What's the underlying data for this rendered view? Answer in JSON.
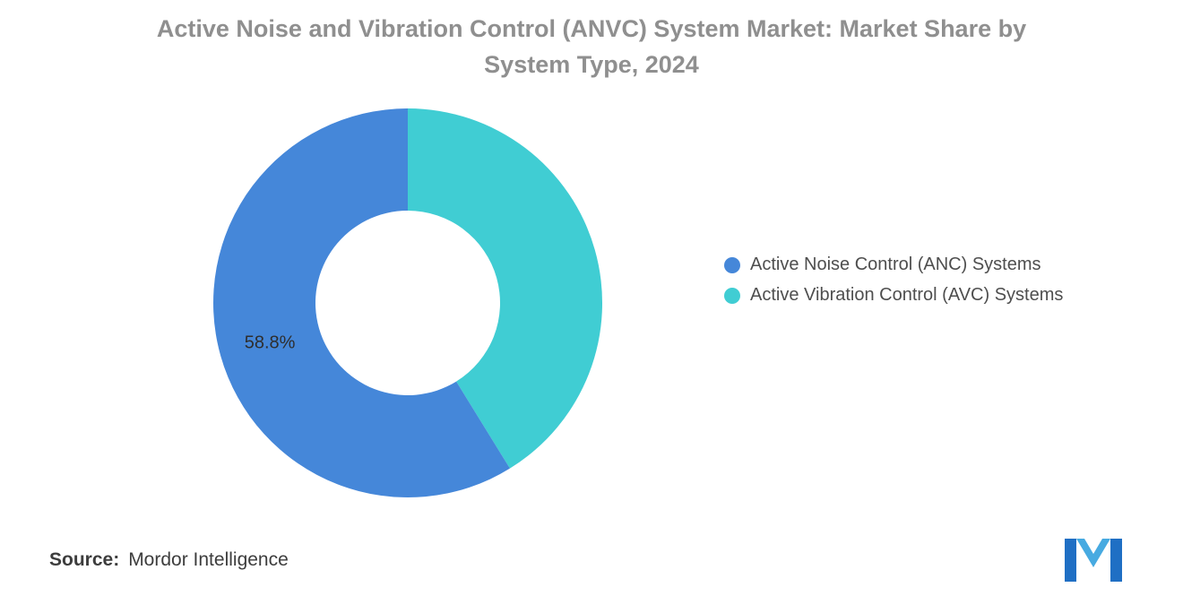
{
  "title": "Active Noise and Vibration Control (ANVC) System Market: Market Share by\nSystem Type, 2024",
  "chart_data": {
    "type": "pie",
    "subtype": "donut",
    "title": "Active Noise and Vibration Control (ANVC) System Market: Market Share by System Type, 2024",
    "year": "2024",
    "unit": "percent market share",
    "legend_position": "right",
    "start_angle": "top, clockwise, second series first (teal on right)",
    "series": [
      {
        "name": "Active Noise Control (ANC) Systems",
        "value": 58.8,
        "label": "58.8%",
        "color": "#4587D9"
      },
      {
        "name": "Active Vibration Control (AVC) Systems",
        "value": 41.2,
        "label": "",
        "color": "#40CDD3"
      }
    ]
  },
  "legend": {
    "items": [
      {
        "label": "Active Noise Control (ANC) Systems"
      },
      {
        "label": "Active Vibration Control (AVC) Systems"
      }
    ]
  },
  "source": {
    "prefix": "Source:",
    "text": "Mordor Intelligence"
  },
  "logo": {
    "name": "Mordor Intelligence",
    "bar_color": "#1F6FC4",
    "chevron_color": "#47AAE1"
  },
  "colors": {
    "title_text": "#8f8f8f",
    "legend_text": "#4e4e4e",
    "slice_label_text": "#2e2e2e",
    "background": "#ffffff"
  }
}
